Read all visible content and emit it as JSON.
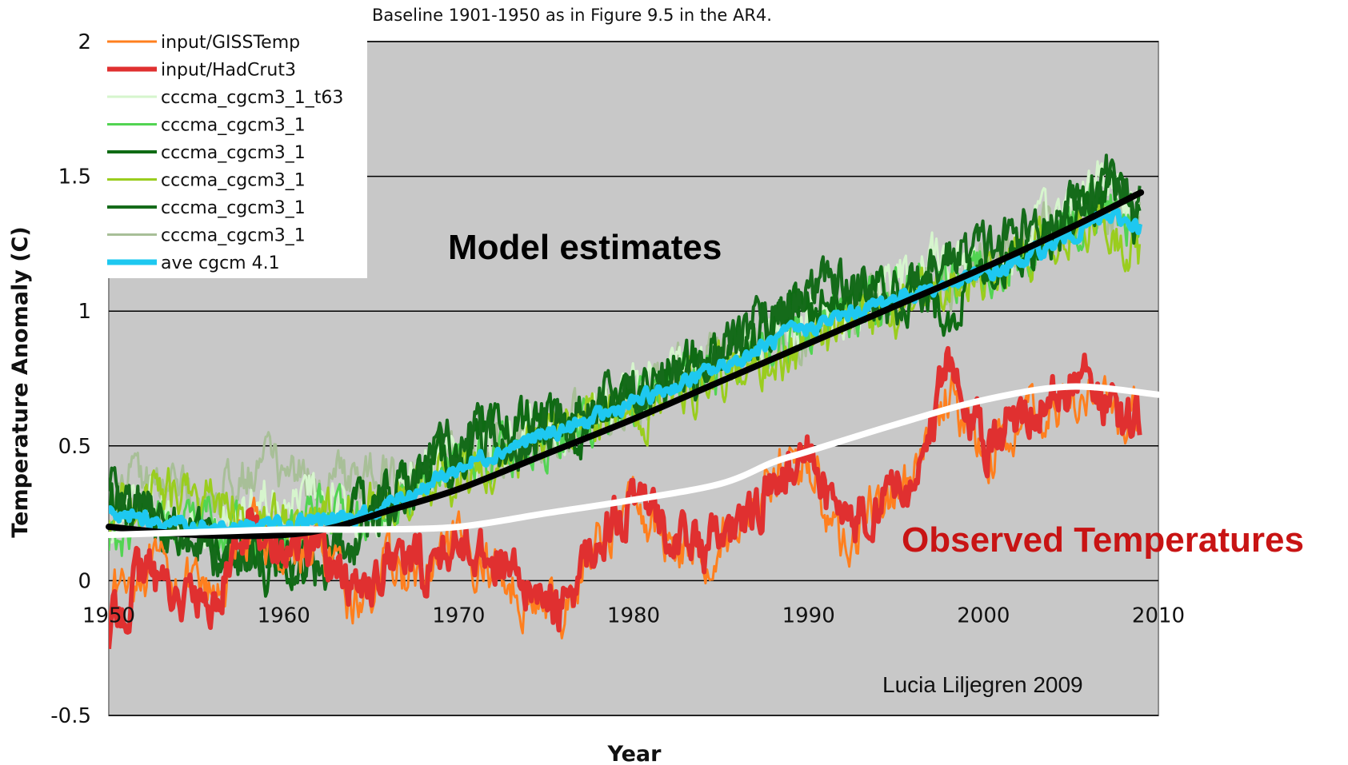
{
  "chart_data": {
    "type": "line",
    "title": "",
    "subtitle": "Baseline 1901-1950 as in Figure 9.5 in the AR4.",
    "xlabel": "Year",
    "ylabel": "Temperature Anomaly (C)",
    "xlim": [
      1950,
      2010
    ],
    "ylim": [
      -0.5,
      2
    ],
    "xticks": [
      "1950",
      "1960",
      "1970",
      "1980",
      "1990",
      "2000",
      "2010"
    ],
    "yticks": [
      "-0.5",
      "0",
      "0.5",
      "1",
      "1.5",
      "2"
    ],
    "grid": "horizontal",
    "legend_position": "top-left",
    "series": [
      {
        "name": "input/GISSTemp",
        "color": "#ff7f1e",
        "width": 3,
        "x": [
          1950,
          1952,
          1954,
          1956,
          1958,
          1960,
          1962,
          1964,
          1966,
          1968,
          1970,
          1972,
          1974,
          1976,
          1978,
          1980,
          1982,
          1984,
          1986,
          1988,
          1990,
          1992,
          1994,
          1996,
          1998,
          2000,
          2002,
          2004,
          2006,
          2008,
          2009
        ],
        "y": [
          -0.05,
          0.05,
          0.0,
          -0.08,
          0.2,
          0.1,
          0.12,
          -0.1,
          0.05,
          0.0,
          0.12,
          0.05,
          -0.08,
          -0.12,
          0.15,
          0.3,
          0.15,
          0.1,
          0.2,
          0.4,
          0.45,
          0.12,
          0.3,
          0.35,
          0.72,
          0.45,
          0.6,
          0.65,
          0.7,
          0.58,
          0.65
        ]
      },
      {
        "name": "input/HadCrut3",
        "color": "#e03030",
        "width": 6,
        "x": [
          1950,
          1952,
          1954,
          1956,
          1958,
          1960,
          1962,
          1964,
          1966,
          1968,
          1970,
          1972,
          1974,
          1976,
          1978,
          1980,
          1982,
          1984,
          1986,
          1988,
          1990,
          1992,
          1994,
          1996,
          1998,
          2000,
          2002,
          2004,
          2006,
          2008,
          2009
        ],
        "y": [
          -0.2,
          0.05,
          -0.05,
          -0.1,
          0.25,
          0.1,
          0.15,
          -0.05,
          0.08,
          0.05,
          0.15,
          0.1,
          -0.05,
          -0.1,
          0.18,
          0.28,
          0.2,
          0.12,
          0.18,
          0.35,
          0.45,
          0.2,
          0.3,
          0.35,
          0.8,
          0.5,
          0.62,
          0.68,
          0.75,
          0.55,
          0.62
        ]
      },
      {
        "name": "cccma_cgcm3_1_t63",
        "color": "#d6f5cd",
        "width": 3,
        "x": [
          1950,
          1953,
          1956,
          1959,
          1962,
          1965,
          1968,
          1971,
          1974,
          1977,
          1980,
          1983,
          1986,
          1989,
          1992,
          1995,
          1998,
          2001,
          2004,
          2007,
          2009
        ],
        "y": [
          0.2,
          0.3,
          0.15,
          0.35,
          0.3,
          0.25,
          0.4,
          0.5,
          0.55,
          0.6,
          0.7,
          0.8,
          0.85,
          0.95,
          1.0,
          1.1,
          1.2,
          1.15,
          1.35,
          1.5,
          1.4
        ]
      },
      {
        "name": "cccma_cgcm3_1",
        "color": "#52d452",
        "width": 3,
        "x": [
          1950,
          1953,
          1956,
          1959,
          1962,
          1965,
          1968,
          1971,
          1974,
          1977,
          1980,
          1983,
          1986,
          1989,
          1992,
          1995,
          1998,
          2001,
          2004,
          2007,
          2009
        ],
        "y": [
          0.15,
          0.25,
          0.2,
          0.1,
          0.3,
          0.2,
          0.35,
          0.45,
          0.5,
          0.55,
          0.65,
          0.75,
          0.8,
          0.9,
          1.0,
          1.05,
          1.15,
          1.1,
          1.3,
          1.4,
          1.3
        ]
      },
      {
        "name": "cccma_cgcm3_1",
        "color": "#0f6b14",
        "width": 4,
        "x": [
          1950,
          1953,
          1956,
          1959,
          1962,
          1965,
          1968,
          1971,
          1974,
          1977,
          1980,
          1983,
          1986,
          1989,
          1992,
          1995,
          1998,
          2001,
          2004,
          2007,
          2009
        ],
        "y": [
          0.3,
          0.2,
          0.15,
          0.05,
          0.1,
          0.3,
          0.4,
          0.5,
          0.6,
          0.55,
          0.7,
          0.8,
          0.9,
          1.0,
          1.05,
          1.1,
          1.0,
          1.2,
          1.3,
          1.45,
          1.3
        ]
      },
      {
        "name": "cccma_cgcm3_1",
        "color": "#9acd1e",
        "width": 3,
        "x": [
          1950,
          1953,
          1956,
          1959,
          1962,
          1965,
          1968,
          1971,
          1974,
          1977,
          1980,
          1983,
          1986,
          1989,
          1992,
          1995,
          1998,
          2001,
          2004,
          2007,
          2009
        ],
        "y": [
          0.25,
          0.35,
          0.3,
          0.2,
          0.2,
          0.3,
          0.35,
          0.4,
          0.5,
          0.6,
          0.6,
          0.7,
          0.8,
          0.85,
          0.95,
          1.0,
          1.1,
          1.15,
          1.25,
          1.35,
          1.2
        ]
      },
      {
        "name": "cccma_cgcm3_1",
        "color": "#156b1a",
        "width": 4,
        "x": [
          1950,
          1953,
          1956,
          1959,
          1962,
          1965,
          1968,
          1971,
          1974,
          1977,
          1980,
          1983,
          1986,
          1989,
          1992,
          1995,
          1998,
          2001,
          2004,
          2007,
          2009
        ],
        "y": [
          0.35,
          0.2,
          0.1,
          0.1,
          0.05,
          0.2,
          0.45,
          0.55,
          0.5,
          0.65,
          0.7,
          0.75,
          0.9,
          1.05,
          1.1,
          1.0,
          1.2,
          1.25,
          1.35,
          1.5,
          1.4
        ]
      },
      {
        "name": "cccma_cgcm3_1",
        "color": "#a8bf98",
        "width": 3,
        "x": [
          1950,
          1953,
          1956,
          1959,
          1962,
          1965,
          1968,
          1971,
          1974,
          1977,
          1980,
          1983,
          1986,
          1989,
          1992,
          1995,
          1998,
          2001,
          2004,
          2007,
          2009
        ],
        "y": [
          0.4,
          0.35,
          0.3,
          0.45,
          0.35,
          0.4,
          0.4,
          0.45,
          0.55,
          0.6,
          0.65,
          0.8,
          0.85,
          0.9,
          1.0,
          1.05,
          1.1,
          1.2,
          1.3,
          1.4,
          1.35
        ]
      },
      {
        "name": "ave cgcm 4.1",
        "color": "#1ec8f0",
        "width": 7,
        "x": [
          1950,
          1953,
          1956,
          1959,
          1962,
          1965,
          1968,
          1971,
          1974,
          1977,
          1980,
          1983,
          1986,
          1989,
          1992,
          1995,
          1998,
          2001,
          2004,
          2007,
          2009
        ],
        "y": [
          0.25,
          0.22,
          0.2,
          0.2,
          0.22,
          0.25,
          0.35,
          0.45,
          0.52,
          0.58,
          0.66,
          0.74,
          0.82,
          0.92,
          0.98,
          1.05,
          1.1,
          1.15,
          1.25,
          1.35,
          1.32
        ]
      }
    ],
    "trend_lines": [
      {
        "name": "",
        "color": "#000000",
        "x": [
          1950,
          1955,
          1960,
          1963,
          1966,
          1970,
          1975,
          1980,
          1985,
          1990,
          1995,
          2000,
          2005,
          2009
        ],
        "y": [
          0.2,
          0.17,
          0.17,
          0.2,
          0.26,
          0.34,
          0.47,
          0.6,
          0.74,
          0.88,
          1.02,
          1.16,
          1.31,
          1.44
        ]
      },
      {
        "name": "",
        "color": "#ffffff",
        "x": [
          1950,
          1955,
          1960,
          1965,
          1970,
          1975,
          1980,
          1985,
          1988,
          1990,
          1995,
          2000,
          2005,
          2010
        ],
        "y": [
          0.17,
          0.18,
          0.19,
          0.19,
          0.2,
          0.25,
          0.3,
          0.36,
          0.44,
          0.48,
          0.58,
          0.67,
          0.72,
          0.69
        ]
      }
    ],
    "annotations": {
      "model": "Model estimates",
      "observed": "Observed Temperatures",
      "credit": "Lucia Liljegren 2009"
    },
    "plot_background": "#c8c8c8"
  }
}
